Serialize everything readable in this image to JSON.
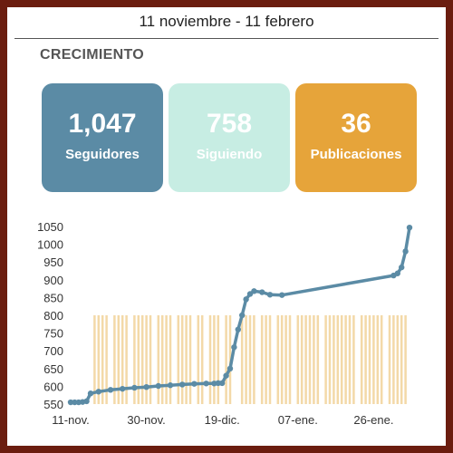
{
  "header": {
    "date_range": "11 noviembre - 11 febrero"
  },
  "section": {
    "title": "CRECIMIENTO"
  },
  "cards": [
    {
      "value": "1,047",
      "label": "Seguidores",
      "color": "#5b8ba5"
    },
    {
      "value": "758",
      "label": "Siguiendo",
      "color": "#c7ede3"
    },
    {
      "value": "36",
      "label": "Publicaciones",
      "color": "#e6a43a"
    }
  ],
  "chart_data": {
    "type": "line",
    "series": [
      {
        "color": "#5b8ba5",
        "x": [
          "11-nov.",
          "12-nov.",
          "13-nov.",
          "14-nov.",
          "15-nov.",
          "16-nov.",
          "18-nov.",
          "21-nov.",
          "24-nov.",
          "27-nov.",
          "30-nov.",
          "03-dic.",
          "06-dic.",
          "09-dic.",
          "12-dic.",
          "15-dic.",
          "17-dic.",
          "18-dic.",
          "19-dic.",
          "20-dic.",
          "21-dic.",
          "22-dic.",
          "23-dic.",
          "24-dic.",
          "25-dic.",
          "26-dic.",
          "27-dic.",
          "29-dic.",
          "31-dic.",
          "03-ene.",
          "31-ene.",
          "01-feb.",
          "02-feb.",
          "03-feb.",
          "04-feb."
        ],
        "values": [
          555,
          555,
          555,
          556,
          558,
          580,
          585,
          590,
          593,
          596,
          598,
          601,
          603,
          605,
          607,
          608,
          608,
          609,
          609,
          630,
          650,
          710,
          760,
          800,
          845,
          860,
          868,
          865,
          858,
          857,
          912,
          918,
          935,
          980,
          1047
        ]
      }
    ],
    "bars": {
      "color": "#f3d9a8",
      "value": 800,
      "x": [
        "17-nov.",
        "18-nov.",
        "19-nov.",
        "20-nov.",
        "22-nov.",
        "23-nov.",
        "24-nov.",
        "25-nov.",
        "27-nov.",
        "28-nov.",
        "29-nov.",
        "30-nov.",
        "01-dic.",
        "03-dic.",
        "04-dic.",
        "05-dic.",
        "06-dic.",
        "08-dic.",
        "09-dic.",
        "10-dic.",
        "11-dic.",
        "13-dic.",
        "14-dic.",
        "16-dic.",
        "17-dic.",
        "18-dic.",
        "20-dic.",
        "21-dic.",
        "24-dic.",
        "25-dic.",
        "26-dic.",
        "27-dic.",
        "29-dic.",
        "30-dic.",
        "31-dic.",
        "02-ene.",
        "03-ene.",
        "04-ene.",
        "05-ene.",
        "07-ene.",
        "08-ene.",
        "09-ene.",
        "10-ene.",
        "11-ene.",
        "12-ene.",
        "14-ene.",
        "15-ene.",
        "16-ene.",
        "17-ene.",
        "18-ene.",
        "19-ene.",
        "20-ene.",
        "21-ene.",
        "23-ene.",
        "24-ene.",
        "25-ene.",
        "26-ene.",
        "27-ene.",
        "28-ene.",
        "30-ene.",
        "31-ene.",
        "01-feb.",
        "02-feb.",
        "03-feb."
      ]
    },
    "xlabels": [
      "11-nov.",
      "30-nov.",
      "19-dic.",
      "07-ene.",
      "26-ene."
    ],
    "yticks": [
      "550",
      "600",
      "650",
      "700",
      "750",
      "800",
      "850",
      "900",
      "950",
      "1000",
      "1050"
    ],
    "ylim": [
      550,
      1050
    ],
    "grid": false
  }
}
